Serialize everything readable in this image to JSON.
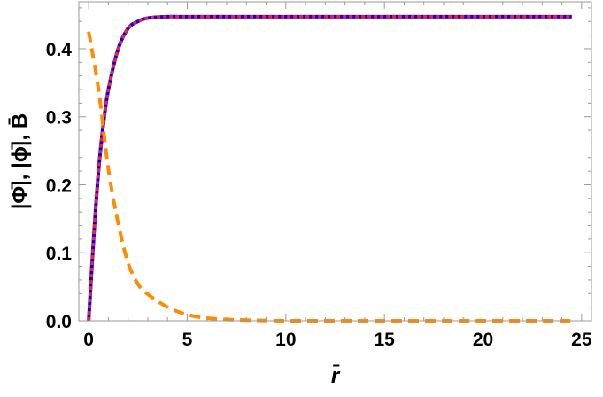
{
  "chart_data": {
    "type": "line",
    "title": "",
    "xlabel": "r̄",
    "ylabel": "|Φ̄|, |ϕ̄|, B̄",
    "xlim": [
      -0.5,
      25.5
    ],
    "ylim": [
      0,
      0.469
    ],
    "xticks": [
      0,
      5,
      10,
      15,
      20,
      25
    ],
    "xtick_labels": [
      "0",
      "5",
      "10",
      "15",
      "20",
      "25"
    ],
    "yticks": [
      0.0,
      0.1,
      0.2,
      0.3,
      0.4
    ],
    "ytick_labels": [
      "0.0",
      "0.1",
      "0.2",
      "0.3",
      "0.4"
    ],
    "grid": false,
    "series": [
      {
        "style": "solid",
        "color": "#0000ff",
        "x": [
          0,
          0.25,
          0.5,
          0.75,
          1,
          1.5,
          2,
          2.5,
          3,
          4,
          5,
          10,
          15,
          20,
          24.5
        ],
        "y": [
          0,
          0.12,
          0.22,
          0.29,
          0.34,
          0.4,
          0.43,
          0.44,
          0.445,
          0.447,
          0.447,
          0.447,
          0.447,
          0.447,
          0.447
        ]
      },
      {
        "style": "dotted",
        "color": "#ff2020",
        "x": [
          0,
          0.25,
          0.5,
          0.75,
          1,
          1.5,
          2,
          2.5,
          3,
          4,
          5,
          10,
          15,
          20,
          24.5
        ],
        "y": [
          0,
          0.12,
          0.22,
          0.29,
          0.34,
          0.4,
          0.43,
          0.44,
          0.445,
          0.447,
          0.447,
          0.447,
          0.447,
          0.447,
          0.447
        ]
      },
      {
        "style": "dashed",
        "color": "#ff8c00",
        "x": [
          0,
          0.5,
          1,
          1.5,
          2,
          2.5,
          3,
          4,
          5,
          6,
          7,
          8,
          10,
          15,
          20,
          24.5
        ],
        "y": [
          0.425,
          0.34,
          0.223,
          0.143,
          0.085,
          0.054,
          0.039,
          0.02,
          0.009,
          0.004,
          0.002,
          0.001,
          0,
          0,
          0,
          0
        ]
      }
    ]
  }
}
